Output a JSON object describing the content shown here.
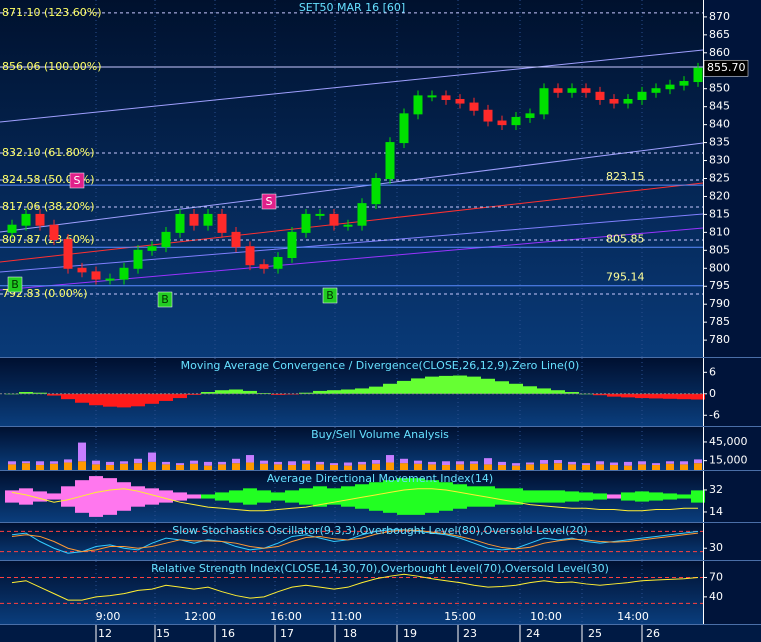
{
  "chart_data": [
    {
      "type": "candlestick",
      "title": "SET50 MAR 16  [60]",
      "open": [
        810,
        812,
        815,
        812,
        808,
        800,
        799,
        797,
        797,
        800,
        805,
        806,
        810,
        815,
        812,
        815,
        810,
        806,
        801,
        800,
        803,
        810,
        815,
        815,
        812,
        812,
        818,
        825,
        835,
        843,
        848,
        848,
        847,
        846,
        844,
        841,
        840,
        842,
        843,
        850,
        849,
        850,
        849,
        847,
        846,
        847,
        849,
        850,
        851,
        852
      ],
      "high": [
        813.5,
        816.5,
        816.5,
        813.5,
        809.5,
        801.5,
        800.5,
        798.5,
        801.5,
        806.5,
        807.5,
        811.5,
        816.5,
        816.5,
        816.5,
        816.5,
        811.5,
        807.5,
        802.5,
        804.5,
        811.5,
        816.5,
        816.5,
        816.5,
        813.5,
        819.5,
        826.5,
        836.5,
        844.5,
        849.5,
        849.5,
        849.5,
        848.5,
        847.5,
        845.5,
        842.5,
        843.5,
        844.5,
        851.5,
        851.5,
        851.5,
        851.5,
        850.5,
        848.5,
        848.5,
        850.5,
        851.5,
        852.5,
        853.5,
        857.2
      ],
      "low": [
        808.5,
        810.5,
        810.5,
        806.5,
        798.5,
        797.5,
        795.5,
        795.5,
        795.5,
        798.5,
        803.5,
        804.5,
        808.5,
        810.5,
        810.5,
        808.5,
        804.5,
        799.5,
        798.5,
        798.5,
        801.5,
        808.5,
        813.5,
        810.5,
        810.5,
        810.5,
        816.5,
        823.5,
        833.5,
        841.5,
        846.5,
        845.5,
        844.5,
        842.5,
        839.5,
        838.5,
        838.5,
        840.5,
        841.5,
        847.5,
        847.5,
        847.5,
        845.5,
        844.5,
        844.5,
        845.5,
        847.5,
        848.5,
        849.5,
        850.5
      ],
      "close": [
        812,
        815,
        812,
        808,
        800,
        799,
        797,
        797,
        800,
        805,
        806,
        810,
        815,
        812,
        815,
        810,
        806,
        801,
        800,
        803,
        810,
        815,
        815,
        812,
        812,
        818,
        825,
        835,
        843,
        848,
        848,
        847,
        846,
        844,
        841,
        840,
        842,
        843,
        850,
        849,
        850,
        849,
        847,
        846,
        847,
        849,
        850,
        851,
        852,
        855.7
      ],
      "up_color": "#00e000",
      "down_color": "#ff2a2a",
      "ylim": [
        775.3,
        874.7
      ],
      "yticks": [
        870,
        865,
        860,
        855,
        850,
        845,
        840,
        835,
        830,
        825,
        820,
        815,
        810,
        805,
        800,
        795,
        790,
        785,
        780
      ],
      "fib_levels": [
        {
          "value": 871.1,
          "label": "871.10 (123.60%)"
        },
        {
          "value": 856.06,
          "label": "856.06 (100.00%)"
        },
        {
          "value": 832.1,
          "label": "832.10 (61.80%)"
        },
        {
          "value": 824.58,
          "label": "824.58 (50.00%)"
        },
        {
          "value": 817.06,
          "label": "817.06 (38.20%)"
        },
        {
          "value": 807.87,
          "label": "807.87 (23.60%)"
        },
        {
          "value": 792.83,
          "label": "792.83 (0.00%)"
        }
      ],
      "levels": [
        823.15,
        805.85,
        795.14
      ],
      "last_price": {
        "value": 855.7,
        "label": "855.70"
      },
      "signals": [
        "B",
        "S",
        "S",
        "B",
        "B"
      ]
    },
    {
      "type": "bar",
      "title": "Moving Average Convergence / Divergence(CLOSE,26,12,9),Zero Line(0)",
      "values": [
        0,
        0.5,
        0.3,
        -0.5,
        -1.5,
        -2.5,
        -3.2,
        -3.6,
        -3.8,
        -3.5,
        -2.8,
        -2,
        -1.2,
        -0.3,
        0.5,
        1,
        1.2,
        0.8,
        0.2,
        -0.3,
        -0.2,
        0.3,
        0.8,
        1,
        1.2,
        1.5,
        2,
        2.8,
        3.6,
        4.3,
        4.8,
        5,
        5.1,
        4.8,
        4.2,
        3.5,
        2.8,
        2.1,
        1.5,
        1,
        0.5,
        0,
        -0.4,
        -0.8,
        -1,
        -1.2,
        -1.3,
        -1.4,
        -1.5,
        -1.6
      ],
      "pos_color": "#66ff33",
      "neg_color": "#ff1a1a",
      "ylim": [
        -9,
        10
      ],
      "yticks": [
        6,
        0,
        -6
      ]
    },
    {
      "type": "stacked-bar",
      "title": "Buy/Sell Volume Analysis",
      "series": [
        {
          "color": "#ff9900",
          "values": [
            9000,
            11000,
            8000,
            10000,
            12000,
            14000,
            9000,
            8000,
            10000,
            11000,
            13000,
            9000,
            8000,
            10000,
            7000,
            9000,
            11000,
            12000,
            10000,
            9000,
            8000,
            10000,
            9000,
            8000,
            7000,
            9000,
            10000,
            12000,
            11000,
            10000,
            9000,
            8000,
            9000,
            10000,
            9000,
            8000,
            7000,
            9000,
            10000,
            11000,
            9000,
            8000,
            9000,
            8000,
            7000,
            9000,
            8000,
            10000,
            9000,
            11000
          ]
        },
        {
          "color": "#c77dff",
          "values": [
            5000,
            3000,
            6000,
            4000,
            5000,
            30000,
            6000,
            5000,
            4000,
            7000,
            15000,
            4000,
            3000,
            5000,
            6000,
            4000,
            7000,
            12000,
            5000,
            4000,
            6000,
            5000,
            4000,
            3000,
            5000,
            4000,
            6000,
            12000,
            7000,
            5000,
            4000,
            6000,
            5000,
            4000,
            10000,
            5000,
            4000,
            3000,
            6000,
            5000,
            4000,
            3000,
            5000,
            4000,
            6000,
            5000,
            3000,
            4000,
            5000,
            6000
          ]
        }
      ],
      "ylim": [
        0,
        69000
      ],
      "yticks": [
        {
          "value": 45000,
          "label": "45,000"
        },
        {
          "value": 15000,
          "label": "15,000"
        }
      ]
    },
    {
      "type": "adx",
      "title": "Average Directional Movement Index(14)",
      "values": [
        30,
        28,
        25,
        22,
        24,
        27,
        30,
        32,
        33,
        31,
        28,
        25,
        22,
        20,
        18,
        17,
        16,
        15,
        15,
        16,
        17,
        18,
        20,
        22,
        24,
        26,
        28,
        30,
        32,
        33,
        33,
        32,
        30,
        28,
        26,
        24,
        22,
        20,
        19,
        18,
        17,
        17,
        16,
        16,
        15,
        15,
        16,
        16,
        17,
        17
      ],
      "spread": [
        -6,
        -8,
        -5,
        -3,
        -10,
        -16,
        -20,
        -18,
        -14,
        -10,
        -8,
        -6,
        -4,
        -2,
        2,
        4,
        6,
        8,
        6,
        4,
        6,
        8,
        10,
        8,
        10,
        12,
        14,
        16,
        18,
        18,
        16,
        14,
        12,
        10,
        10,
        8,
        8,
        6,
        6,
        6,
        5,
        4,
        3,
        -2,
        4,
        5,
        4,
        3,
        2,
        6
      ],
      "line_color": "#ffee33",
      "pos_color": "#22ff22",
      "neg_color": "#ff77ee",
      "ylim": [
        5.8,
        47.5
      ],
      "yticks": [
        32,
        14
      ]
    },
    {
      "type": "line",
      "title": "Slow Stochastics Oscillator(9,3,3),Overbought Level(80),Oversold Level(20)",
      "series": [
        {
          "color": "#33ccff",
          "values": [
            70,
            75,
            50,
            30,
            15,
            20,
            35,
            40,
            30,
            25,
            45,
            60,
            55,
            45,
            55,
            50,
            35,
            25,
            30,
            45,
            65,
            70,
            60,
            50,
            55,
            70,
            80,
            85,
            85,
            80,
            75,
            70,
            60,
            45,
            30,
            25,
            30,
            45,
            60,
            55,
            60,
            50,
            45,
            50,
            55,
            60,
            65,
            70,
            75,
            80
          ]
        },
        {
          "color": "#ff9933",
          "values": [
            65,
            70,
            65,
            50,
            30,
            20,
            25,
            35,
            35,
            30,
            35,
            45,
            55,
            52,
            52,
            50,
            45,
            35,
            30,
            35,
            50,
            62,
            65,
            58,
            55,
            60,
            72,
            80,
            84,
            83,
            78,
            73,
            65,
            55,
            42,
            32,
            28,
            33,
            45,
            52,
            57,
            55,
            50,
            48,
            50,
            55,
            60,
            65,
            70,
            75
          ]
        }
      ],
      "levels": [
        80,
        20
      ],
      "ylim": [
        -5,
        105
      ],
      "yticks": [
        30
      ]
    },
    {
      "type": "line",
      "title": "Relative Strength Index(CLOSE,14,30,70),Overbought Level(70),Oversold Level(30)",
      "series": [
        {
          "color": "#ffee33",
          "values": [
            62,
            65,
            55,
            45,
            35,
            35,
            40,
            42,
            45,
            50,
            52,
            58,
            55,
            52,
            55,
            48,
            42,
            38,
            40,
            48,
            55,
            58,
            55,
            52,
            55,
            62,
            68,
            72,
            75,
            72,
            68,
            65,
            62,
            58,
            55,
            56,
            58,
            62,
            65,
            62,
            63,
            60,
            58,
            60,
            62,
            65,
            66,
            67,
            68,
            70
          ]
        }
      ],
      "levels": [
        70,
        30
      ],
      "ylim": [
        -2,
        95.5
      ],
      "yticks": [
        70,
        40
      ]
    }
  ],
  "x_axis": {
    "times": [
      "9:00",
      "12:00",
      "16:00",
      "11:00",
      "15:00",
      "10:00",
      "14:00"
    ],
    "dates": [
      "12",
      "15",
      "16",
      "17",
      "18",
      "19",
      "23",
      "24",
      "25",
      "26"
    ]
  }
}
